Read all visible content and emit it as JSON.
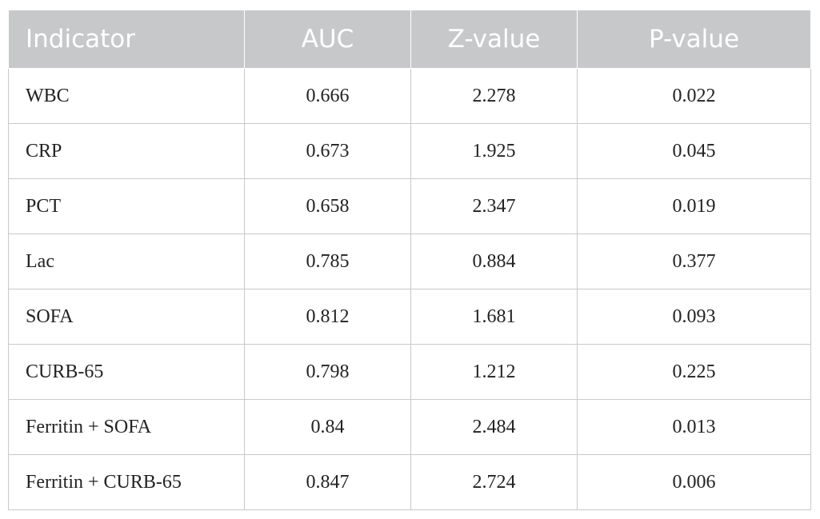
{
  "table": {
    "headers": [
      "Indicator",
      "AUC",
      "Z-value",
      "P-value"
    ],
    "rows": [
      [
        "WBC",
        "0.666",
        "2.278",
        "0.022"
      ],
      [
        "CRP",
        "0.673",
        "1.925",
        "0.045"
      ],
      [
        "PCT",
        "0.658",
        "2.347",
        "0.019"
      ],
      [
        "Lac",
        "0.785",
        "0.884",
        "0.377"
      ],
      [
        "SOFA",
        "0.812",
        "1.681",
        "0.093"
      ],
      [
        "CURB-65",
        "0.798",
        "1.212",
        "0.225"
      ],
      [
        "Ferritin + SOFA",
        "0.84",
        "2.484",
        "0.013"
      ],
      [
        "Ferritin + CURB-65",
        "0.847",
        "2.724",
        "0.006"
      ]
    ]
  },
  "colors": {
    "header_background": "#c7c8ca",
    "header_text": "#ffffff",
    "grid_line": "#c9c9c9"
  }
}
